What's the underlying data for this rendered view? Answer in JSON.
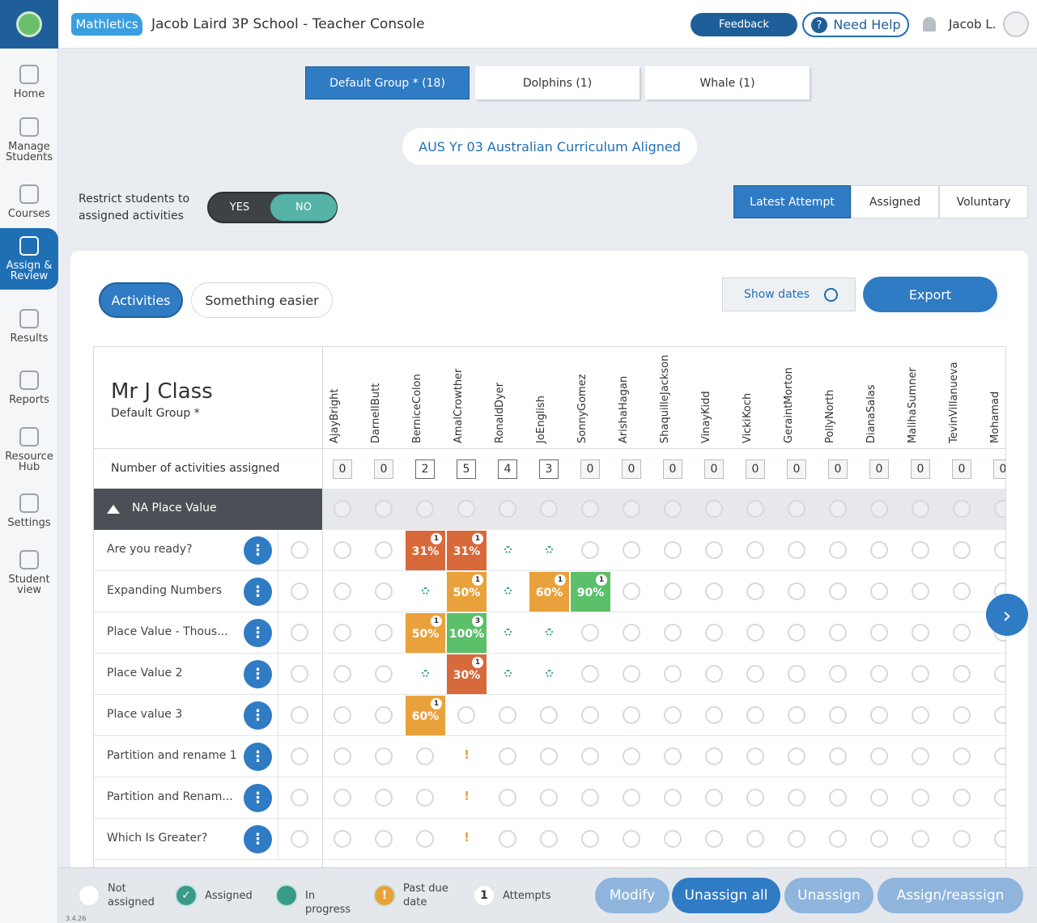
{
  "header": {
    "logo": "Mathletics",
    "title": "Jacob Laird 3P School - Teacher Console",
    "feedback": "Feedback",
    "help": "Need Help",
    "user": "Jacob L."
  },
  "sidebar": {
    "items": [
      "Home",
      "Manage Students",
      "Courses",
      "Assign & Review",
      "Results",
      "Reports",
      "Resource Hub",
      "Settings",
      "Student view"
    ],
    "active": 3
  },
  "groups": [
    "Default Group * (18)",
    "Dolphins (1)",
    "Whale (1)"
  ],
  "curriculum": "AUS Yr 03 Australian Curriculum Aligned",
  "restrict": {
    "label": "Restrict students to assigned activities",
    "yes": "YES",
    "no": "NO"
  },
  "views": [
    "Latest Attempt",
    "Assigned",
    "Voluntary"
  ],
  "filters": [
    "Activities",
    "Something easier"
  ],
  "actions": {
    "show_dates": "Show dates",
    "export": "Export"
  },
  "table": {
    "class": "Mr J Class",
    "group": "Default Group *",
    "count_label": "Number of activities assigned",
    "students": [
      {
        "first": "Ajay",
        "last": "Bright"
      },
      {
        "first": "Darnell",
        "last": "Butt"
      },
      {
        "first": "Bernice",
        "last": "Colon"
      },
      {
        "first": "Amal",
        "last": "Crowther"
      },
      {
        "first": "Ronald",
        "last": "Dyer"
      },
      {
        "first": "Jo",
        "last": "English"
      },
      {
        "first": "Sonny",
        "last": "Gomez"
      },
      {
        "first": "Arisha",
        "last": "Hagan"
      },
      {
        "first": "Shaquille",
        "last": "Jackson"
      },
      {
        "first": "Vinay",
        "last": "Kidd"
      },
      {
        "first": "Vicki",
        "last": "Koch"
      },
      {
        "first": "Geraint",
        "last": "Morton"
      },
      {
        "first": "Polly",
        "last": "North"
      },
      {
        "first": "Diana",
        "last": "Salas"
      },
      {
        "first": "Maliha",
        "last": "Sumner"
      },
      {
        "first": "Tevin",
        "last": "Villanueva"
      },
      {
        "first": "Mohamad"
      }
    ],
    "counts": [
      0,
      0,
      2,
      5,
      4,
      3,
      0,
      0,
      0,
      0,
      0,
      0,
      0,
      0,
      0,
      0,
      0
    ],
    "section": "NA Place Value",
    "rows": [
      {
        "name": "Are you ready?",
        "cells": [
          null,
          null,
          {
            "score": "31%",
            "attempts": "1",
            "color": "#d7693b"
          },
          {
            "score": "31%",
            "attempts": "1",
            "color": "#d7693b"
          },
          {
            "state": "progress"
          },
          {
            "state": "progress"
          },
          null,
          null,
          null,
          null,
          null,
          null,
          null,
          null,
          null,
          null,
          null
        ]
      },
      {
        "name": "Expanding Numbers",
        "cells": [
          null,
          null,
          {
            "state": "progress"
          },
          {
            "score": "50%",
            "attempts": "1",
            "color": "#e9a23b"
          },
          {
            "state": "progress"
          },
          {
            "score": "60%",
            "attempts": "1",
            "color": "#e9a23b"
          },
          {
            "score": "90%",
            "attempts": "1",
            "color": "#5cbf6a"
          },
          null,
          null,
          null,
          null,
          null,
          null,
          null,
          null,
          null,
          null
        ]
      },
      {
        "name": "Place Value - Thous...",
        "cells": [
          null,
          null,
          {
            "score": "50%",
            "attempts": "1",
            "color": "#e9a23b"
          },
          {
            "score": "100%",
            "attempts": "3",
            "color": "#5cbf6a"
          },
          {
            "state": "progress"
          },
          {
            "state": "progress"
          },
          null,
          null,
          null,
          null,
          null,
          null,
          null,
          null,
          null,
          null,
          null
        ]
      },
      {
        "name": "Place Value 2",
        "cells": [
          null,
          null,
          {
            "state": "progress"
          },
          {
            "score": "30%",
            "attempts": "1",
            "color": "#d7693b"
          },
          {
            "state": "progress"
          },
          {
            "state": "progress"
          },
          null,
          null,
          null,
          null,
          null,
          null,
          null,
          null,
          null,
          null,
          null
        ]
      },
      {
        "name": "Place value 3",
        "cells": [
          null,
          null,
          {
            "score": "60%",
            "attempts": "1",
            "color": "#e9a23b"
          },
          null,
          null,
          null,
          null,
          null,
          null,
          null,
          null,
          null,
          null,
          null,
          null,
          null,
          null
        ]
      },
      {
        "name": "Partition and rename 1",
        "cells": [
          null,
          null,
          null,
          {
            "state": "due",
            "text": "!"
          },
          null,
          null,
          null,
          null,
          null,
          null,
          null,
          null,
          null,
          null,
          null,
          null,
          null
        ]
      },
      {
        "name": "Partition and Renam...",
        "cells": [
          null,
          null,
          null,
          {
            "state": "due",
            "text": "!"
          },
          null,
          null,
          null,
          null,
          null,
          null,
          null,
          null,
          null,
          null,
          null,
          null,
          null
        ]
      },
      {
        "name": "Which Is Greater?",
        "cells": [
          null,
          null,
          null,
          {
            "state": "due",
            "text": "!"
          },
          null,
          null,
          null,
          null,
          null,
          null,
          null,
          null,
          null,
          null,
          null,
          null,
          null
        ]
      }
    ]
  },
  "legend": [
    "Not assigned",
    "Assigned",
    "In progress",
    "Past due date",
    "Attempts"
  ],
  "legend_attempt": "1",
  "buttons": [
    "Modify",
    "Unassign all",
    "Unassign",
    "Assign/reassign"
  ],
  "version": "3.4.26"
}
